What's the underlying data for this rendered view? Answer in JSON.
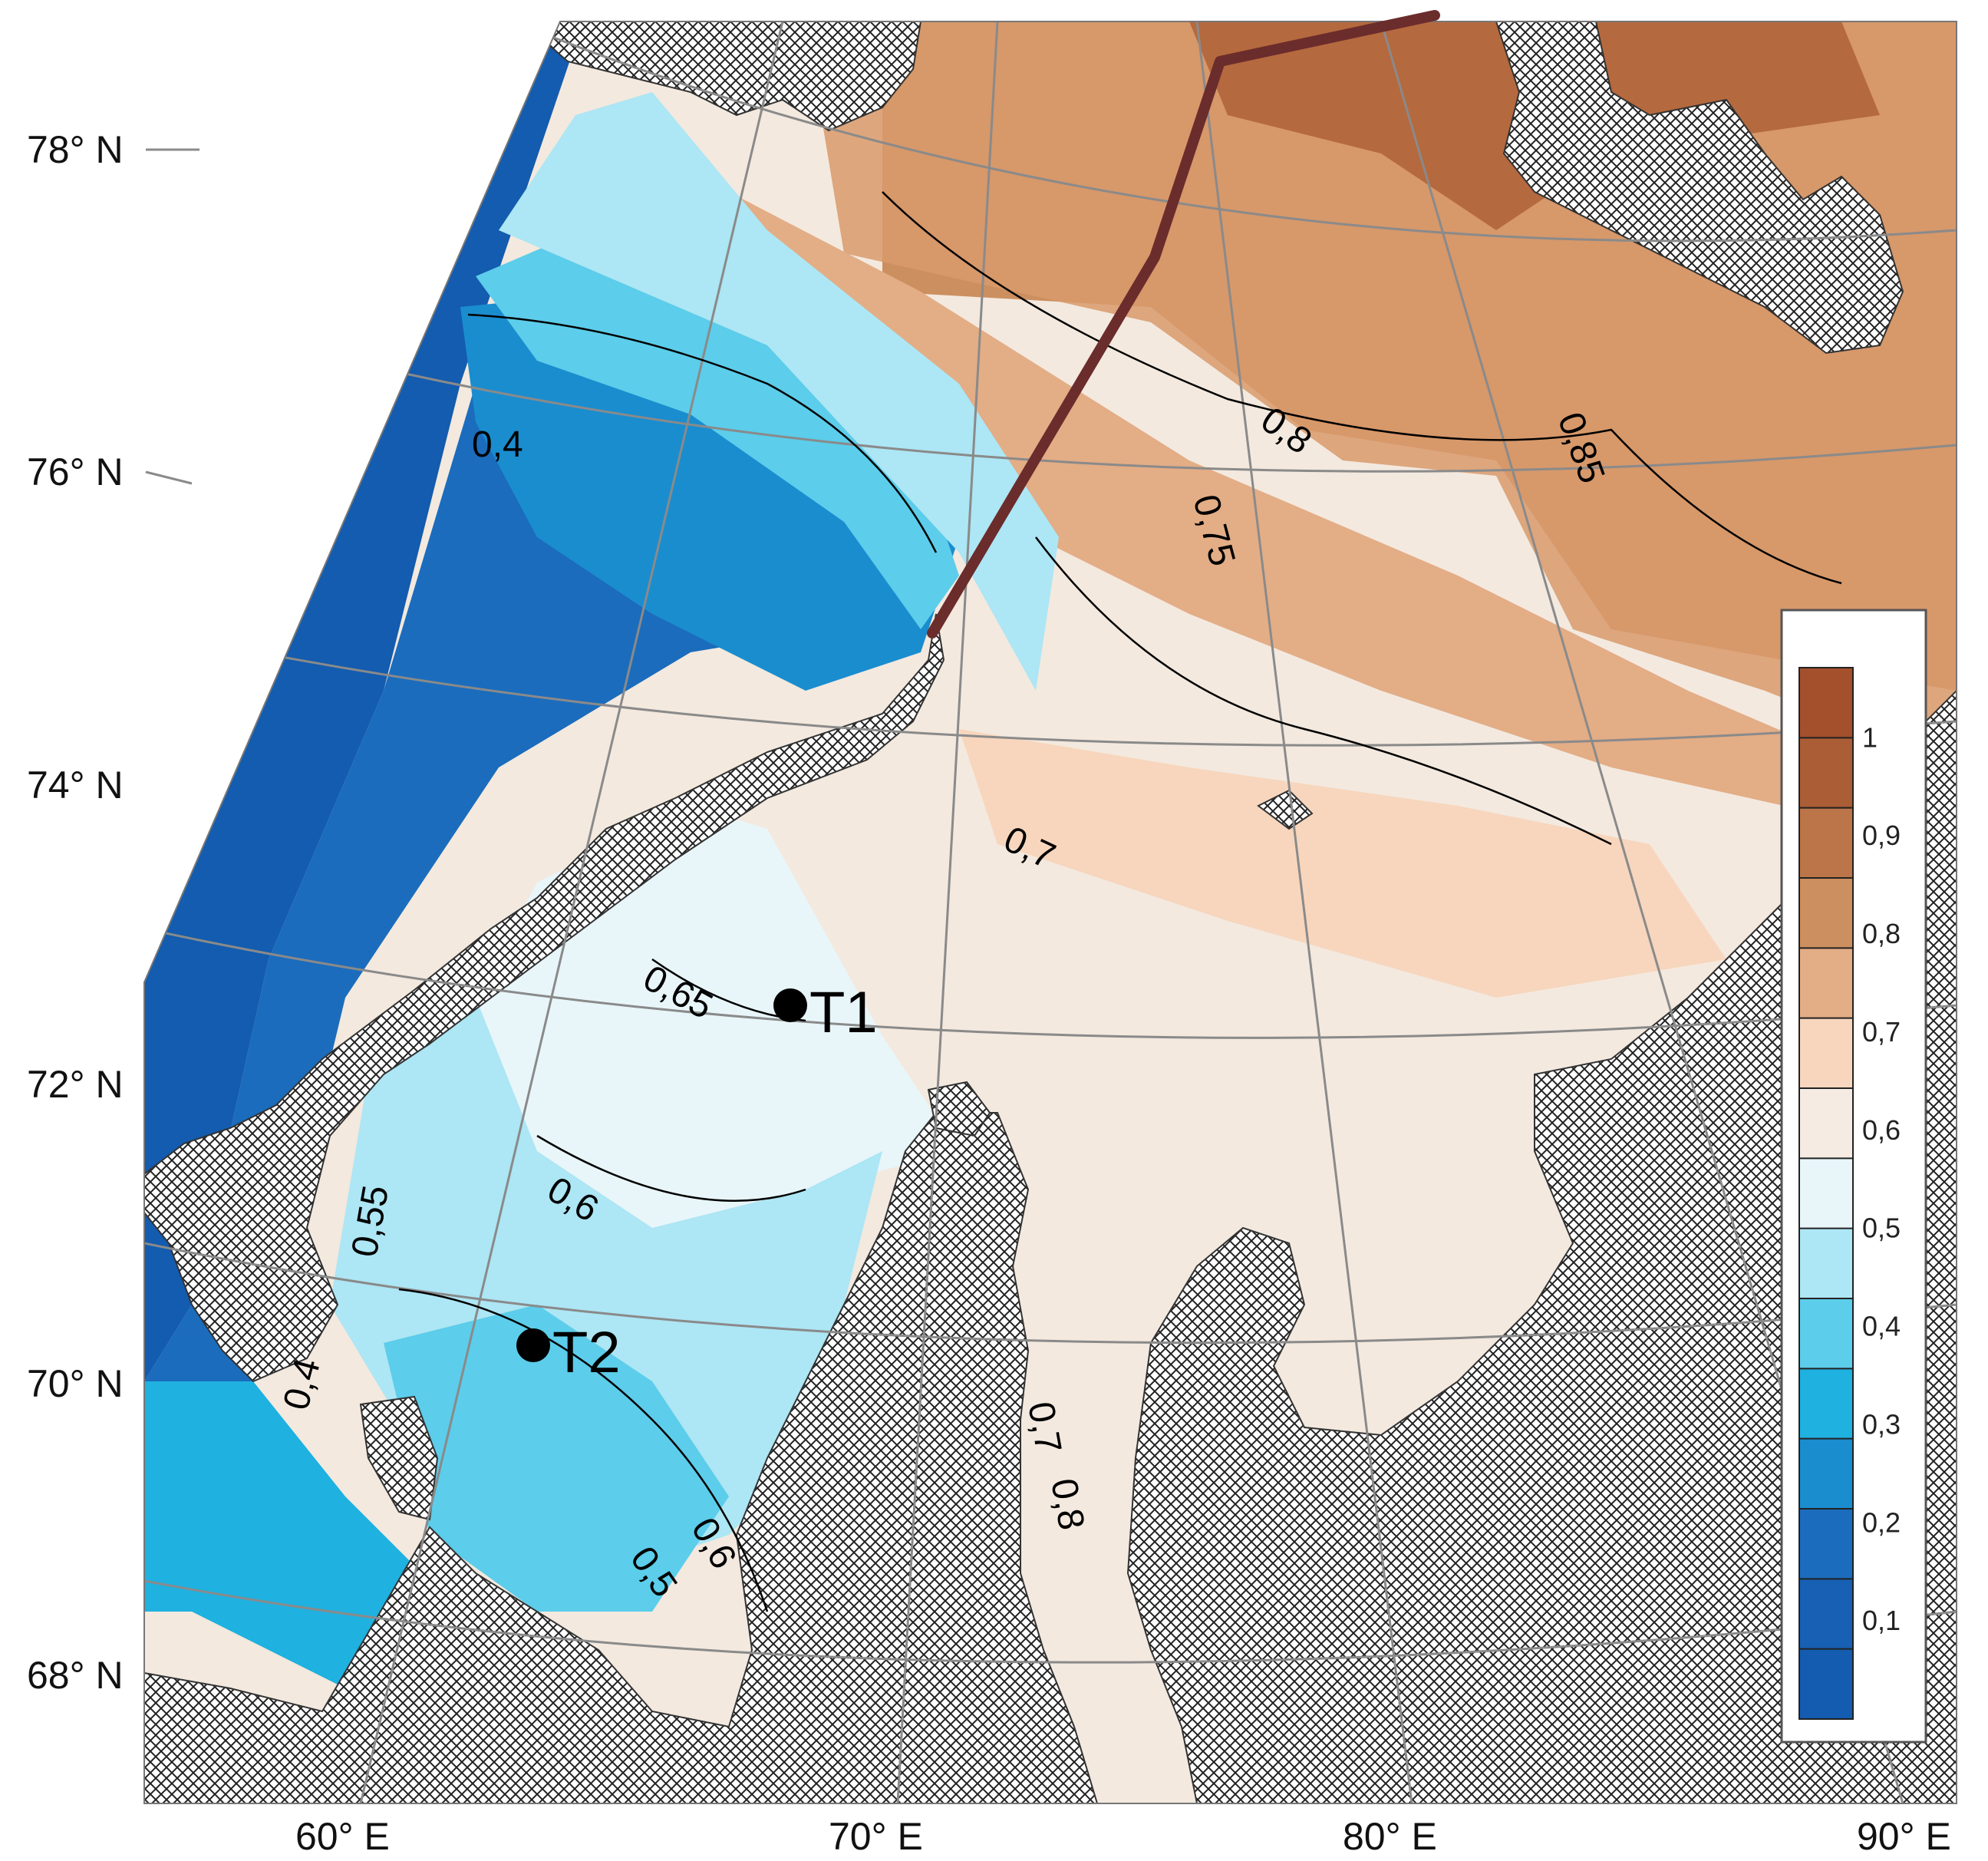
{
  "map": {
    "lat_labels": [
      "78° N",
      "76° N",
      "74° N",
      "72° N",
      "70° N",
      "68° N"
    ],
    "lon_labels": [
      "60° E",
      "70° E",
      "80° E",
      "90° E"
    ],
    "contour_labels": [
      "0,4",
      "0,8",
      "0,85",
      "0,75",
      "0,7",
      "0,65",
      "0,6",
      "0,55",
      "0,5",
      "0,6",
      "0,8",
      "0,7",
      "0,4"
    ],
    "stations": [
      {
        "label": "T1",
        "lat": 72.9,
        "lon": 68.5
      },
      {
        "label": "T2",
        "lat": 70.4,
        "lon": 63.5
      }
    ]
  },
  "legend": {
    "labels": [
      "1",
      "0,9",
      "0,8",
      "0,7",
      "0,6",
      "0,5",
      "0,4",
      "0,3",
      "0,2",
      "0,1"
    ],
    "colors": [
      "#a4502c",
      "#ab5d35",
      "#bb7548",
      "#cc8f5f",
      "#e3ad86",
      "#f7d6bd",
      "#f5ebe2",
      "#e8f6fa",
      "#ade6f4",
      "#5ccdea",
      "#1fb1e0",
      "#1a8dcf",
      "#1b6cbc",
      "#1760b3",
      "#135caf"
    ]
  },
  "colors": {
    "land_fill": "#ffffff",
    "hatch": "#222222",
    "route": "#6b2c2c",
    "graticule": "#8a8a8a"
  }
}
